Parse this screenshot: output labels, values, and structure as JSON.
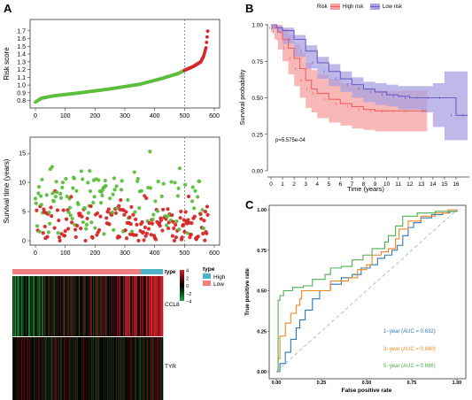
{
  "panels": {
    "a": "A",
    "b": "B",
    "c": "C"
  },
  "chart_data": [
    {
      "type": "scatter",
      "id": "risk-score",
      "ylabel": "Risk score",
      "xlim": [
        0,
        600
      ],
      "ylim": [
        0.75,
        1.8
      ],
      "xticks": [
        0,
        100,
        200,
        300,
        400,
        500,
        600
      ],
      "yticks": [
        0.8,
        0.9,
        1.0,
        1.1,
        1.2,
        1.3,
        1.4,
        1.5,
        1.6,
        1.7
      ],
      "ytick_labels": [
        "0.8",
        "0.9",
        "1.0",
        "1.1",
        "1.2",
        "1.3",
        "1.4",
        "1.5",
        "1.6",
        "1.7"
      ],
      "cutoff_x": 500,
      "n": 580,
      "series": [
        {
          "name": "Low",
          "color": "#5bbf3c"
        },
        {
          "name": "High",
          "color": "#d62728"
        }
      ],
      "curve_anchors": [
        [
          0,
          0.78
        ],
        [
          20,
          0.83
        ],
        [
          60,
          0.86
        ],
        [
          150,
          0.9
        ],
        [
          250,
          0.95
        ],
        [
          350,
          1.01
        ],
        [
          420,
          1.08
        ],
        [
          480,
          1.15
        ],
        [
          500,
          1.19
        ],
        [
          530,
          1.24
        ],
        [
          555,
          1.3
        ],
        [
          565,
          1.38
        ],
        [
          572,
          1.48
        ],
        [
          576,
          1.62
        ],
        [
          580,
          1.77
        ]
      ]
    },
    {
      "type": "scatter",
      "id": "survival-time",
      "ylabel": "Survival time (years)",
      "xlim": [
        0,
        600
      ],
      "ylim": [
        0,
        17
      ],
      "xticks": [
        0,
        100,
        200,
        300,
        400,
        500,
        600
      ],
      "yticks": [
        0,
        5,
        10,
        15
      ],
      "cutoff_x": 500,
      "series": [
        {
          "name": "Alive",
          "color": "#5bbf3c"
        },
        {
          "name": "Dead",
          "color": "#d62728"
        }
      ]
    },
    {
      "type": "heatmap",
      "id": "gene-heatmap",
      "rows": [
        "CCL8",
        "TYR"
      ],
      "annotation_title": "type",
      "annotation_levels": [
        {
          "name": "High",
          "color": "#4fb3c8"
        },
        {
          "name": "Low",
          "color": "#ef7f7f"
        }
      ],
      "color_scale_ticks": [
        4,
        2,
        0,
        -2,
        -4
      ],
      "color_scale_labels": [
        "4",
        "2",
        "0",
        "−2",
        "−4"
      ],
      "colors": {
        "low": "#19a33a",
        "mid": "#000000",
        "high": "#d21e2d"
      }
    },
    {
      "type": "line",
      "id": "kaplan-meier",
      "legend_title": "Risk",
      "series": [
        {
          "name": "High risk",
          "color": "#f06262",
          "band_color": "#f6a0a0",
          "x": [
            0,
            0.3,
            0.6,
            1,
            1.5,
            2,
            2.5,
            3,
            3.5,
            4,
            5,
            6,
            7,
            8,
            9,
            10,
            11,
            12,
            13.5
          ],
          "y": [
            1.0,
            0.98,
            0.95,
            0.9,
            0.84,
            0.77,
            0.7,
            0.62,
            0.56,
            0.53,
            0.49,
            0.46,
            0.44,
            0.42,
            0.41,
            0.41,
            0.41,
            0.41,
            0.41
          ],
          "lo": [
            1.0,
            0.95,
            0.9,
            0.83,
            0.75,
            0.66,
            0.58,
            0.5,
            0.43,
            0.4,
            0.36,
            0.33,
            0.31,
            0.29,
            0.28,
            0.27,
            0.27,
            0.27,
            0.27
          ],
          "hi": [
            1.0,
            1.0,
            1.0,
            0.97,
            0.93,
            0.87,
            0.81,
            0.74,
            0.69,
            0.66,
            0.63,
            0.6,
            0.58,
            0.56,
            0.55,
            0.55,
            0.55,
            0.55,
            0.55
          ]
        },
        {
          "name": "Low risk",
          "color": "#6c5fc7",
          "band_color": "#a9a2e2",
          "x": [
            0,
            0.5,
            1,
            2,
            3,
            4,
            5,
            6,
            7,
            8,
            9,
            10,
            11,
            12,
            13,
            14,
            15,
            16,
            17
          ],
          "y": [
            1.0,
            0.98,
            0.96,
            0.9,
            0.82,
            0.74,
            0.68,
            0.63,
            0.59,
            0.56,
            0.54,
            0.52,
            0.51,
            0.5,
            0.5,
            0.5,
            0.5,
            0.38,
            0.38
          ],
          "lo": [
            1.0,
            0.97,
            0.94,
            0.87,
            0.78,
            0.7,
            0.63,
            0.58,
            0.54,
            0.5,
            0.47,
            0.45,
            0.44,
            0.42,
            0.42,
            0.4,
            0.3,
            0.21,
            0.21
          ],
          "hi": [
            1.0,
            0.99,
            0.98,
            0.93,
            0.86,
            0.78,
            0.73,
            0.68,
            0.64,
            0.61,
            0.6,
            0.59,
            0.58,
            0.58,
            0.58,
            0.6,
            0.68,
            0.68,
            0.68
          ]
        }
      ],
      "xlabel": "Time (years)",
      "ylabel": "Survival probability",
      "xlim": [
        0,
        17
      ],
      "ylim": [
        0,
        1
      ],
      "xticks": [
        0,
        1,
        2,
        3,
        4,
        5,
        6,
        7,
        8,
        9,
        10,
        11,
        12,
        13,
        14,
        15,
        16
      ],
      "yticks": [
        0,
        0.25,
        0.5,
        0.75,
        1.0
      ],
      "ytick_labels": [
        "0.00",
        "0.25",
        "0.50",
        "0.75",
        "1.00"
      ],
      "annotation": "p=5.575e-04"
    },
    {
      "type": "line",
      "id": "roc",
      "xlabel": "False positive rate",
      "ylabel": "True positive rate",
      "xlim": [
        0,
        1
      ],
      "ylim": [
        0,
        1
      ],
      "ticks": [
        0,
        0.25,
        0.5,
        0.75,
        1.0
      ],
      "tick_labels": [
        "0.00",
        "0.25",
        "0.50",
        "0.75",
        "1.00"
      ],
      "series": [
        {
          "name": "1−year (AUC = 0.632)",
          "color": "#2f77b6",
          "points": [
            [
              0,
              0
            ],
            [
              0.02,
              0.05
            ],
            [
              0.05,
              0.12
            ],
            [
              0.08,
              0.2
            ],
            [
              0.11,
              0.27
            ],
            [
              0.13,
              0.32
            ],
            [
              0.16,
              0.38
            ],
            [
              0.2,
              0.45
            ],
            [
              0.24,
              0.5
            ],
            [
              0.3,
              0.54
            ],
            [
              0.36,
              0.58
            ],
            [
              0.42,
              0.6
            ],
            [
              0.47,
              0.64
            ],
            [
              0.52,
              0.66
            ],
            [
              0.56,
              0.7
            ],
            [
              0.6,
              0.72
            ],
            [
              0.64,
              0.75
            ],
            [
              0.67,
              0.78
            ],
            [
              0.7,
              0.84
            ],
            [
              0.73,
              0.89
            ],
            [
              0.76,
              0.92
            ],
            [
              0.8,
              0.95
            ],
            [
              0.86,
              0.97
            ],
            [
              0.92,
              0.98
            ],
            [
              0.96,
              0.99
            ],
            [
              1,
              1
            ]
          ]
        },
        {
          "name": "3−year (AUC = 0.640)",
          "color": "#f0861d",
          "points": [
            [
              0,
              0
            ],
            [
              0.01,
              0.08
            ],
            [
              0.02,
              0.22
            ],
            [
              0.05,
              0.3
            ],
            [
              0.08,
              0.36
            ],
            [
              0.11,
              0.41
            ],
            [
              0.13,
              0.45
            ],
            [
              0.14,
              0.5
            ],
            [
              0.25,
              0.5
            ],
            [
              0.3,
              0.56
            ],
            [
              0.4,
              0.58
            ],
            [
              0.45,
              0.63
            ],
            [
              0.5,
              0.66
            ],
            [
              0.53,
              0.72
            ],
            [
              0.58,
              0.74
            ],
            [
              0.62,
              0.76
            ],
            [
              0.66,
              0.82
            ],
            [
              0.68,
              0.88
            ],
            [
              0.73,
              0.93
            ],
            [
              0.8,
              0.96
            ],
            [
              0.88,
              0.98
            ],
            [
              0.95,
              1
            ],
            [
              1,
              1
            ]
          ]
        },
        {
          "name": "5−year (AUC = 0.696)",
          "color": "#4caf50",
          "points": [
            [
              0,
              0
            ],
            [
              0.01,
              0.44
            ],
            [
              0.02,
              0.47
            ],
            [
              0.04,
              0.5
            ],
            [
              0.09,
              0.52
            ],
            [
              0.15,
              0.53
            ],
            [
              0.2,
              0.57
            ],
            [
              0.27,
              0.6
            ],
            [
              0.3,
              0.64
            ],
            [
              0.36,
              0.65
            ],
            [
              0.42,
              0.69
            ],
            [
              0.48,
              0.72
            ],
            [
              0.53,
              0.76
            ],
            [
              0.57,
              0.76
            ],
            [
              0.6,
              0.8
            ],
            [
              0.62,
              0.84
            ],
            [
              0.66,
              0.9
            ],
            [
              0.7,
              0.96
            ],
            [
              0.78,
              0.98
            ],
            [
              0.88,
              0.99
            ],
            [
              1,
              1
            ]
          ]
        }
      ]
    }
  ]
}
